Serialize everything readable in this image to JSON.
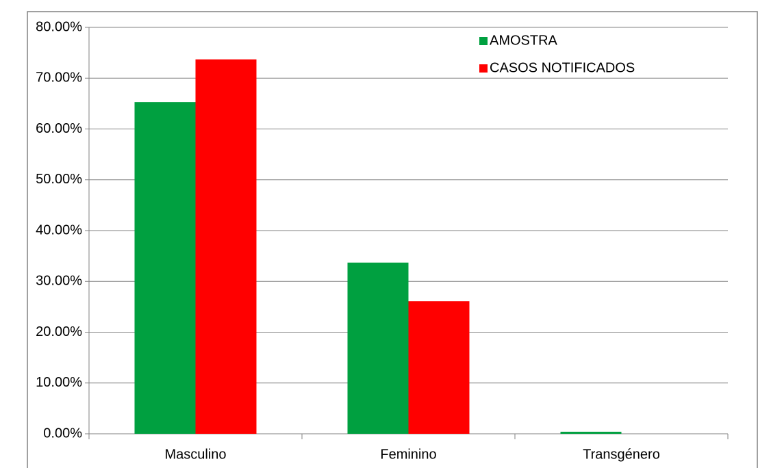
{
  "chart_data": {
    "type": "bar",
    "categories": [
      "Masculino",
      "Feminino",
      "Transgénero"
    ],
    "series": [
      {
        "name": "AMOSTRA",
        "color": "#00a040",
        "values": [
          65.3,
          33.7,
          0.4
        ]
      },
      {
        "name": "CASOS NOTIFICADOS",
        "color": "#ff0000",
        "values": [
          73.7,
          26.1,
          0
        ]
      }
    ],
    "ylim": [
      0,
      80
    ],
    "yticks": [
      {
        "value": 0,
        "label": "0.00%"
      },
      {
        "value": 10,
        "label": "10.00%"
      },
      {
        "value": 20,
        "label": "20.00%"
      },
      {
        "value": 30,
        "label": "30.00%"
      },
      {
        "value": 40,
        "label": "40.00%"
      },
      {
        "value": 50,
        "label": "50.00%"
      },
      {
        "value": 60,
        "label": "60.00%"
      },
      {
        "value": 70,
        "label": "70.00%"
      },
      {
        "value": 80,
        "label": "80.00%"
      }
    ],
    "grid": true,
    "legend": "top-right"
  }
}
